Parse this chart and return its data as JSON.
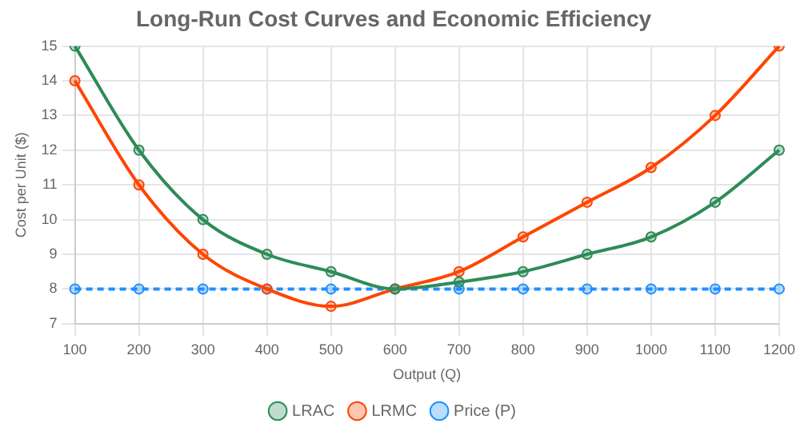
{
  "chart_data": {
    "type": "line",
    "title": "Long-Run Cost Curves and Economic Efficiency",
    "xlabel": "Output (Q)",
    "ylabel": "Cost per Unit ($)",
    "categories": [
      "100",
      "200",
      "300",
      "400",
      "500",
      "600",
      "700",
      "800",
      "900",
      "1000",
      "1100",
      "1200"
    ],
    "series": [
      {
        "name": "LRAC",
        "color": "#2e8b57",
        "values": [
          15,
          12,
          10,
          9,
          8.5,
          8,
          8.2,
          8.5,
          9,
          9.5,
          10.5,
          12
        ]
      },
      {
        "name": "LRMC",
        "color": "#ff4500",
        "values": [
          14,
          11,
          9,
          8,
          7.5,
          8,
          8.5,
          9.5,
          10.5,
          11.5,
          13,
          15
        ]
      },
      {
        "name": "Price (P)",
        "color": "#1e90ff",
        "values": [
          8,
          8,
          8,
          8,
          8,
          8,
          8,
          8,
          8,
          8,
          8,
          8
        ],
        "line_style": "dashed"
      }
    ],
    "ylim": [
      7,
      15
    ],
    "yticks": [
      7,
      8,
      9,
      10,
      11,
      12,
      13,
      14,
      15
    ],
    "grid": true,
    "legend": "bottom",
    "marker": "circle"
  }
}
